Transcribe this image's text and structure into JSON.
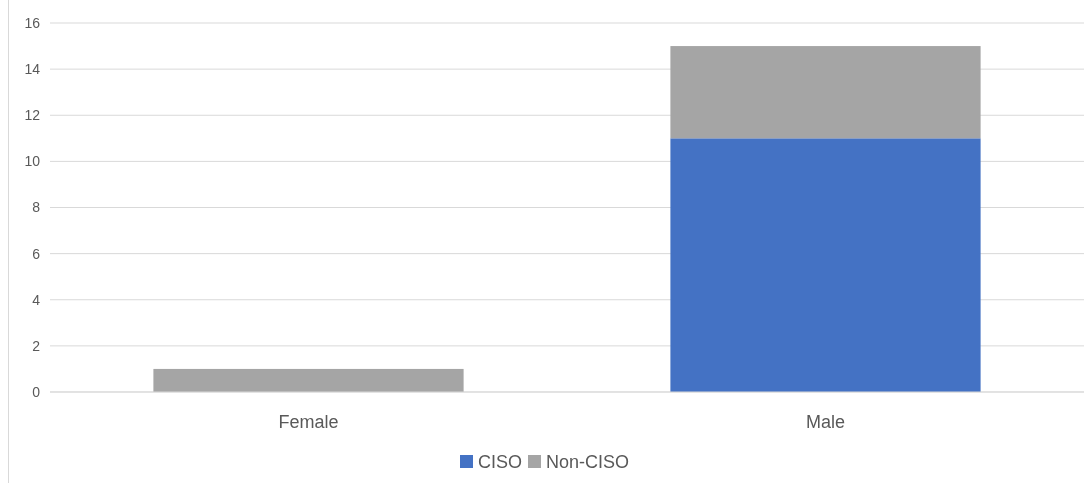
{
  "chart_data": {
    "type": "bar",
    "stacked": true,
    "categories": [
      "Female",
      "Male"
    ],
    "series": [
      {
        "name": "CISO",
        "color": "#4472c4",
        "values": [
          0,
          11
        ]
      },
      {
        "name": "Non-CISO",
        "color": "#a5a5a5",
        "values": [
          1,
          4
        ]
      }
    ],
    "ylim": [
      0,
      16
    ],
    "yticks": [
      0,
      2,
      4,
      6,
      8,
      10,
      12,
      14,
      16
    ],
    "grid": "y",
    "legend": "bottom"
  }
}
